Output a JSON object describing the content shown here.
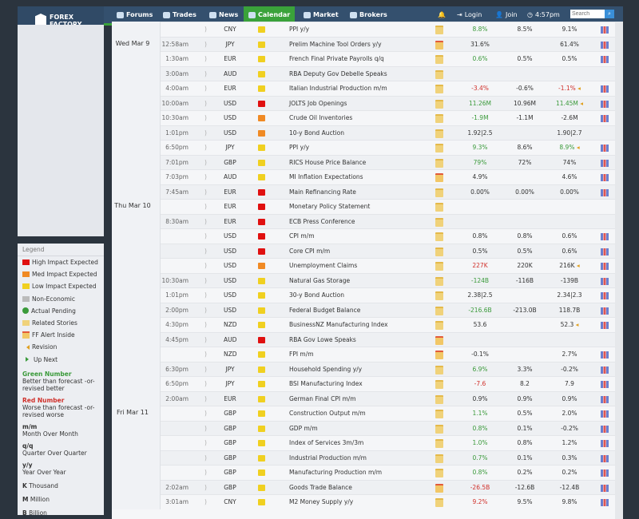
{
  "header": {
    "logo": "FOREX FACTORY",
    "nav": [
      "Forums",
      "Trades",
      "News",
      "Calendar",
      "Market",
      "Brokers"
    ],
    "active": "Calendar",
    "login": "Login",
    "join": "Join",
    "time": "4:57pm",
    "search_placeholder": "Search"
  },
  "colors": {
    "high": "#e01010",
    "med": "#f08a24",
    "low": "#f0d020",
    "green": "#3a9a3a",
    "red": "#d0302a",
    "accent": "#3aa23a"
  },
  "legend": {
    "title": "Legend",
    "items": [
      "High Impact Expected",
      "Med Impact Expected",
      "Low Impact Expected",
      "Non-Economic",
      "Actual Pending",
      "Related Stories",
      "FF Alert Inside",
      "Revision",
      "Up Next"
    ],
    "notes": [
      {
        "t": "Green Number",
        "d": "Better than forecast -or- revised better"
      },
      {
        "t": "Red Number",
        "d": "Worse than forecast -or- revised worse"
      },
      {
        "t": "m/m",
        "d": "Month Over Month"
      },
      {
        "t": "q/q",
        "d": "Quarter Over Quarter"
      },
      {
        "t": "y/y",
        "d": "Year Over Year"
      }
    ],
    "abbr": [
      {
        "k": "K",
        "d": "Thousand"
      },
      {
        "k": "M",
        "d": "Million"
      },
      {
        "k": "B",
        "d": "Billion"
      }
    ]
  },
  "days": [
    {
      "label": "",
      "rows": 1
    },
    {
      "label": "Wed Mar 9",
      "rows": 11
    },
    {
      "label": "Thu Mar 10",
      "rows": 14
    },
    {
      "label": "Fri Mar 11",
      "rows": 7
    }
  ],
  "rows": [
    {
      "time": "",
      "cur": "CNY",
      "imp": "low",
      "ev": "PPI y/y",
      "det": "folder",
      "a": "8.8%",
      "ac": "g",
      "f": "8.5%",
      "p": "9.1%",
      "gr": 1
    },
    {
      "time": "12:58am",
      "cur": "JPY",
      "imp": "low",
      "ev": "Prelim Machine Tool Orders y/y",
      "det": "alert",
      "a": "31.6%",
      "ac": "",
      "f": "",
      "p": "61.4%",
      "gr": 1
    },
    {
      "time": "1:30am",
      "cur": "EUR",
      "imp": "low",
      "ev": "French Final Private Payrolls q/q",
      "det": "folder",
      "a": "0.6%",
      "ac": "g",
      "f": "0.5%",
      "p": "0.5%",
      "gr": 1
    },
    {
      "time": "3:00am",
      "cur": "AUD",
      "imp": "low",
      "ev": "RBA Deputy Gov Debelle Speaks",
      "det": "folder",
      "a": "",
      "ac": "",
      "f": "",
      "p": "",
      "gr": 0
    },
    {
      "time": "4:00am",
      "cur": "EUR",
      "imp": "low",
      "ev": "Italian Industrial Production m/m",
      "det": "folder",
      "a": "-3.4%",
      "ac": "r",
      "f": "-0.6%",
      "p": "-1.1%",
      "pc": "r",
      "rev": 1,
      "gr": 1
    },
    {
      "time": "10:00am",
      "cur": "USD",
      "imp": "high",
      "ev": "JOLTS Job Openings",
      "det": "folder",
      "a": "11.26M",
      "ac": "g",
      "f": "10.96M",
      "p": "11.45M",
      "pc": "g",
      "rev": 1,
      "gr": 1
    },
    {
      "time": "10:30am",
      "cur": "USD",
      "imp": "med",
      "ev": "Crude Oil Inventories",
      "det": "folder",
      "a": "-1.9M",
      "ac": "g",
      "f": "-1.1M",
      "p": "-2.6M",
      "gr": 1
    },
    {
      "time": "1:01pm",
      "cur": "USD",
      "imp": "med",
      "ev": "10-y Bond Auction",
      "det": "folder",
      "a": "1.92|2.5",
      "ac": "",
      "f": "",
      "p": "1.90|2.7",
      "gr": 0
    },
    {
      "time": "6:50pm",
      "cur": "JPY",
      "imp": "low",
      "ev": "PPI y/y",
      "det": "folder",
      "a": "9.3%",
      "ac": "g",
      "f": "8.6%",
      "p": "8.9%",
      "pc": "g",
      "rev": 1,
      "gr": 1
    },
    {
      "time": "7:01pm",
      "cur": "GBP",
      "imp": "low",
      "ev": "RICS House Price Balance",
      "det": "folder",
      "a": "79%",
      "ac": "g",
      "f": "72%",
      "p": "74%",
      "gr": 1
    },
    {
      "time": "7:03pm",
      "cur": "AUD",
      "imp": "low",
      "ev": "MI Inflation Expectations",
      "det": "alert",
      "a": "4.9%",
      "ac": "",
      "f": "",
      "p": "4.6%",
      "gr": 1
    },
    {
      "time": "7:45am",
      "cur": "EUR",
      "imp": "high",
      "ev": "Main Refinancing Rate",
      "det": "folder",
      "a": "0.00%",
      "ac": "",
      "f": "0.00%",
      "p": "0.00%",
      "gr": 1
    },
    {
      "time": "",
      "cur": "EUR",
      "imp": "high",
      "ev": "Monetary Policy Statement",
      "det": "folder",
      "a": "",
      "ac": "",
      "f": "",
      "p": "",
      "gr": 0
    },
    {
      "time": "8:30am",
      "cur": "EUR",
      "imp": "high",
      "ev": "ECB Press Conference",
      "det": "folder",
      "a": "",
      "ac": "",
      "f": "",
      "p": "",
      "gr": 0
    },
    {
      "time": "",
      "cur": "USD",
      "imp": "high",
      "ev": "CPI m/m",
      "det": "folder",
      "a": "0.8%",
      "ac": "",
      "f": "0.8%",
      "p": "0.6%",
      "gr": 1
    },
    {
      "time": "",
      "cur": "USD",
      "imp": "high",
      "ev": "Core CPI m/m",
      "det": "folder",
      "a": "0.5%",
      "ac": "",
      "f": "0.5%",
      "p": "0.6%",
      "gr": 1
    },
    {
      "time": "",
      "cur": "USD",
      "imp": "med",
      "ev": "Unemployment Claims",
      "det": "folder",
      "a": "227K",
      "ac": "r",
      "f": "220K",
      "p": "216K",
      "rev": 1,
      "gr": 1
    },
    {
      "time": "10:30am",
      "cur": "USD",
      "imp": "low",
      "ev": "Natural Gas Storage",
      "det": "folder",
      "a": "-124B",
      "ac": "g",
      "f": "-116B",
      "p": "-139B",
      "gr": 1
    },
    {
      "time": "1:01pm",
      "cur": "USD",
      "imp": "low",
      "ev": "30-y Bond Auction",
      "det": "folder",
      "a": "2.38|2.5",
      "ac": "",
      "f": "",
      "p": "2.34|2.3",
      "gr": 1
    },
    {
      "time": "2:00pm",
      "cur": "USD",
      "imp": "low",
      "ev": "Federal Budget Balance",
      "det": "folder",
      "a": "-216.6B",
      "ac": "g",
      "f": "-213.0B",
      "p": "118.7B",
      "gr": 1
    },
    {
      "time": "4:30pm",
      "cur": "NZD",
      "imp": "low",
      "ev": "BusinessNZ Manufacturing Index",
      "det": "folder",
      "a": "53.6",
      "ac": "",
      "f": "",
      "p": "52.3",
      "rev": 1,
      "gr": 1
    },
    {
      "time": "4:45pm",
      "cur": "AUD",
      "imp": "high",
      "ev": "RBA Gov Lowe Speaks",
      "det": "alert",
      "a": "",
      "ac": "",
      "f": "",
      "p": "",
      "gr": 0
    },
    {
      "time": "",
      "cur": "NZD",
      "imp": "low",
      "ev": "FPI m/m",
      "det": "alert",
      "a": "-0.1%",
      "ac": "",
      "f": "",
      "p": "2.7%",
      "gr": 1
    },
    {
      "time": "6:30pm",
      "cur": "JPY",
      "imp": "low",
      "ev": "Household Spending y/y",
      "det": "folder",
      "a": "6.9%",
      "ac": "g",
      "f": "3.3%",
      "p": "-0.2%",
      "gr": 1
    },
    {
      "time": "6:50pm",
      "cur": "JPY",
      "imp": "low",
      "ev": "BSI Manufacturing Index",
      "det": "folder",
      "a": "-7.6",
      "ac": "r",
      "f": "8.2",
      "p": "7.9",
      "gr": 1
    },
    {
      "time": "2:00am",
      "cur": "EUR",
      "imp": "low",
      "ev": "German Final CPI m/m",
      "det": "folder",
      "a": "0.9%",
      "ac": "",
      "f": "0.9%",
      "p": "0.9%",
      "gr": 1
    },
    {
      "time": "",
      "cur": "GBP",
      "imp": "low",
      "ev": "Construction Output m/m",
      "det": "folder",
      "a": "1.1%",
      "ac": "g",
      "f": "0.5%",
      "p": "2.0%",
      "gr": 1
    },
    {
      "time": "",
      "cur": "GBP",
      "imp": "low",
      "ev": "GDP m/m",
      "det": "folder",
      "a": "0.8%",
      "ac": "g",
      "f": "0.1%",
      "p": "-0.2%",
      "gr": 1
    },
    {
      "time": "",
      "cur": "GBP",
      "imp": "low",
      "ev": "Index of Services 3m/3m",
      "det": "folder",
      "a": "1.0%",
      "ac": "g",
      "f": "0.8%",
      "p": "1.2%",
      "gr": 1
    },
    {
      "time": "",
      "cur": "GBP",
      "imp": "low",
      "ev": "Industrial Production m/m",
      "det": "folder",
      "a": "0.7%",
      "ac": "g",
      "f": "0.1%",
      "p": "0.3%",
      "gr": 1
    },
    {
      "time": "",
      "cur": "GBP",
      "imp": "low",
      "ev": "Manufacturing Production m/m",
      "det": "folder",
      "a": "0.8%",
      "ac": "g",
      "f": "0.2%",
      "p": "0.2%",
      "gr": 1
    },
    {
      "time": "2:02am",
      "cur": "GBP",
      "imp": "low",
      "ev": "Goods Trade Balance",
      "det": "alert",
      "a": "-26.5B",
      "ac": "r",
      "f": "-12.6B",
      "p": "-12.4B",
      "gr": 1
    },
    {
      "time": "3:01am",
      "cur": "CNY",
      "imp": "low",
      "ev": "M2 Money Supply y/y",
      "det": "folder",
      "a": "9.2%",
      "ac": "r",
      "f": "9.5%",
      "p": "9.8%",
      "gr": 1
    }
  ]
}
